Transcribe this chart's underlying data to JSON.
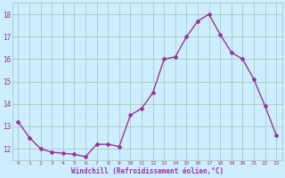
{
  "x": [
    0,
    1,
    2,
    3,
    4,
    5,
    6,
    7,
    8,
    9,
    10,
    11,
    12,
    13,
    14,
    15,
    16,
    17,
    18,
    19,
    20,
    21,
    22,
    23
  ],
  "y": [
    13.2,
    12.5,
    12.0,
    11.85,
    11.8,
    11.75,
    11.65,
    12.2,
    12.2,
    12.1,
    13.5,
    13.8,
    14.5,
    16.0,
    16.1,
    17.0,
    17.7,
    18.0,
    17.1,
    16.3,
    16.0,
    15.1,
    13.9,
    12.6
  ],
  "line_color": "#993399",
  "marker": "D",
  "marker_size": 2,
  "bg_color": "#cceeff",
  "grid_color": "#aaccbb",
  "xlabel": "Windchill (Refroidissement éolien,°C)",
  "xlabel_color": "#993399",
  "tick_color": "#993399",
  "ylim": [
    11.5,
    18.5
  ],
  "yticks": [
    12,
    13,
    14,
    15,
    16,
    17,
    18
  ],
  "xticks": [
    0,
    1,
    2,
    3,
    4,
    5,
    6,
    7,
    8,
    9,
    10,
    11,
    12,
    13,
    14,
    15,
    16,
    17,
    18,
    19,
    20,
    21,
    22,
    23
  ],
  "xlim": [
    -0.5,
    23.5
  ]
}
